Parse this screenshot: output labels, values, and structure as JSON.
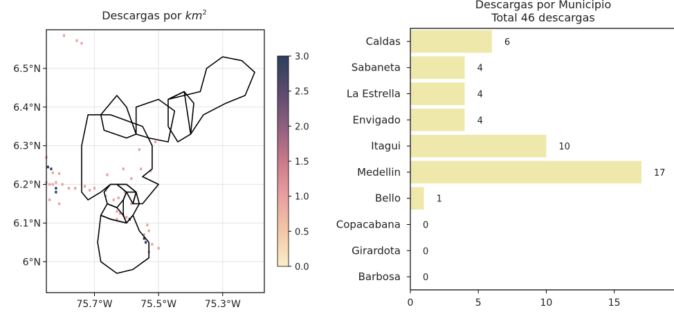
{
  "chart_data": [
    {
      "type": "heatmap",
      "title_text": "Descargas por ",
      "title_math": "km",
      "title_sup": "2",
      "xlim": [
        -75.85,
        -75.17
      ],
      "ylim": [
        5.92,
        6.6
      ],
      "x_ticks": [
        {
          "value": -75.7,
          "label": "75.7°W"
        },
        {
          "value": -75.5,
          "label": "75.5°W"
        },
        {
          "value": -75.3,
          "label": "75.3°W"
        }
      ],
      "y_ticks": [
        {
          "value": 6.5,
          "label": "6.5°N"
        },
        {
          "value": 6.4,
          "label": "6.4°N"
        },
        {
          "value": 6.3,
          "label": "6.3°N"
        },
        {
          "value": 6.2,
          "label": "6.2°N"
        },
        {
          "value": 6.1,
          "label": "6.1°N"
        },
        {
          "value": 6.0,
          "label": "6°N"
        }
      ],
      "grid": true,
      "colorbar": {
        "range": [
          0,
          3
        ],
        "ticks": [
          {
            "value": 3.0,
            "label": "3.0"
          },
          {
            "value": 2.5,
            "label": "2.5"
          },
          {
            "value": 2.0,
            "label": "2.0"
          },
          {
            "value": 1.5,
            "label": "1.5"
          },
          {
            "value": 1.0,
            "label": "1.0"
          },
          {
            "value": 0.5,
            "label": "0.5"
          },
          {
            "value": 0.0,
            "label": "0.0"
          }
        ],
        "colors": [
          "#fbeec8",
          "#f3c7a6",
          "#e8a0a0",
          "#c97a8a",
          "#8f5f7e",
          "#5a4a6e",
          "#2c3e5e"
        ]
      },
      "cells": [
        [
          -75.795,
          6.585,
          1
        ],
        [
          -75.755,
          6.572,
          1
        ],
        [
          -75.74,
          6.565,
          1
        ],
        [
          -75.85,
          6.27,
          1
        ],
        [
          -75.845,
          6.245,
          3
        ],
        [
          -75.835,
          6.24,
          3
        ],
        [
          -75.83,
          6.23,
          1
        ],
        [
          -75.81,
          6.228,
          1
        ],
        [
          -75.85,
          6.205,
          1
        ],
        [
          -75.84,
          6.2,
          1
        ],
        [
          -75.83,
          6.2,
          1
        ],
        [
          -75.82,
          6.205,
          1
        ],
        [
          -75.82,
          6.19,
          3
        ],
        [
          -75.82,
          6.18,
          3
        ],
        [
          -75.8,
          6.2,
          1
        ],
        [
          -75.78,
          6.19,
          1
        ],
        [
          -75.76,
          6.19,
          1
        ],
        [
          -75.73,
          6.195,
          1
        ],
        [
          -75.715,
          6.185,
          1
        ],
        [
          -75.84,
          6.16,
          1
        ],
        [
          -75.81,
          6.15,
          1
        ],
        [
          -75.66,
          6.225,
          1
        ],
        [
          -75.61,
          6.24,
          1
        ],
        [
          -75.585,
          6.215,
          1
        ],
        [
          -75.555,
          6.24,
          1
        ],
        [
          -75.525,
          6.235,
          1
        ],
        [
          -75.56,
          6.29,
          1
        ],
        [
          -75.51,
          6.31,
          1
        ],
        [
          -75.7,
          6.19,
          1
        ],
        [
          -75.665,
          6.185,
          1
        ],
        [
          -75.665,
          6.17,
          1
        ],
        [
          -75.625,
          6.165,
          1
        ],
        [
          -75.605,
          6.18,
          1
        ],
        [
          -75.64,
          6.16,
          1
        ],
        [
          -75.63,
          6.13,
          1
        ],
        [
          -75.62,
          6.125,
          1
        ],
        [
          -75.61,
          6.12,
          1
        ],
        [
          -75.6,
          6.115,
          1
        ],
        [
          -75.63,
          6.11,
          1
        ],
        [
          -75.59,
          6.11,
          3
        ],
        [
          -75.585,
          6.15,
          1
        ],
        [
          -75.535,
          6.095,
          1
        ],
        [
          -75.53,
          6.08,
          1
        ],
        [
          -75.545,
          6.07,
          1
        ],
        [
          -75.545,
          6.06,
          3
        ],
        [
          -75.54,
          6.05,
          3
        ],
        [
          -75.52,
          6.045,
          1
        ],
        [
          -75.5,
          6.035,
          1
        ],
        [
          -75.53,
          6.025,
          1
        ]
      ],
      "regions": [
        [
          [
            -75.67,
            6.18
          ],
          [
            -75.65,
            6.2
          ],
          [
            -75.63,
            6.2
          ],
          [
            -75.6,
            6.18
          ],
          [
            -75.61,
            6.16
          ],
          [
            -75.63,
            6.14
          ],
          [
            -75.66,
            6.15
          ]
        ],
        [
          [
            -75.63,
            6.2
          ],
          [
            -75.6,
            6.2
          ],
          [
            -75.57,
            6.18
          ],
          [
            -75.58,
            6.15
          ],
          [
            -75.6,
            6.18
          ]
        ],
        [
          [
            -75.66,
            6.15
          ],
          [
            -75.63,
            6.14
          ],
          [
            -75.61,
            6.12
          ],
          [
            -75.6,
            6.1
          ],
          [
            -75.65,
            6.11
          ],
          [
            -75.68,
            6.12
          ]
        ],
        [
          [
            -75.6,
            6.18
          ],
          [
            -75.57,
            6.18
          ],
          [
            -75.56,
            6.15
          ],
          [
            -75.58,
            6.12
          ],
          [
            -75.6,
            6.1
          ],
          [
            -75.61,
            6.12
          ],
          [
            -75.61,
            6.16
          ]
        ],
        [
          [
            -75.72,
            6.38
          ],
          [
            -75.65,
            6.38
          ],
          [
            -75.55,
            6.35
          ],
          [
            -75.52,
            6.3
          ],
          [
            -75.52,
            6.24
          ],
          [
            -75.55,
            6.22
          ],
          [
            -75.5,
            6.2
          ],
          [
            -75.55,
            6.15
          ],
          [
            -75.58,
            6.15
          ],
          [
            -75.57,
            6.18
          ],
          [
            -75.6,
            6.2
          ],
          [
            -75.65,
            6.2
          ],
          [
            -75.68,
            6.18
          ],
          [
            -75.72,
            6.16
          ],
          [
            -75.74,
            6.18
          ],
          [
            -75.74,
            6.3
          ]
        ],
        [
          [
            -75.68,
            6.12
          ],
          [
            -75.65,
            6.11
          ],
          [
            -75.6,
            6.1
          ],
          [
            -75.58,
            6.12
          ],
          [
            -75.56,
            6.08
          ],
          [
            -75.53,
            6.05
          ],
          [
            -75.53,
            6.01
          ],
          [
            -75.58,
            5.98
          ],
          [
            -75.63,
            5.97
          ],
          [
            -75.68,
            6.0
          ],
          [
            -75.69,
            6.05
          ]
        ],
        [
          [
            -75.68,
            6.38
          ],
          [
            -75.63,
            6.43
          ],
          [
            -75.6,
            6.4
          ],
          [
            -75.57,
            6.33
          ],
          [
            -75.6,
            6.32
          ],
          [
            -75.67,
            6.34
          ]
        ],
        [
          [
            -75.57,
            6.4
          ],
          [
            -75.5,
            6.42
          ],
          [
            -75.45,
            6.39
          ],
          [
            -75.47,
            6.31
          ],
          [
            -75.53,
            6.32
          ],
          [
            -75.57,
            6.33
          ]
        ],
        [
          [
            -75.47,
            6.42
          ],
          [
            -75.42,
            6.44
          ],
          [
            -75.39,
            6.41
          ],
          [
            -75.4,
            6.33
          ],
          [
            -75.44,
            6.31
          ],
          [
            -75.47,
            6.35
          ]
        ],
        [
          [
            -75.47,
            6.42
          ],
          [
            -75.37,
            6.44
          ],
          [
            -75.35,
            6.5
          ],
          [
            -75.3,
            6.53
          ],
          [
            -75.24,
            6.52
          ],
          [
            -75.2,
            6.49
          ],
          [
            -75.23,
            6.43
          ],
          [
            -75.29,
            6.41
          ],
          [
            -75.36,
            6.38
          ],
          [
            -75.4,
            6.33
          ],
          [
            -75.42,
            6.44
          ]
        ]
      ]
    },
    {
      "type": "bar",
      "orientation": "horizontal",
      "title": [
        "Descargas por Municipio",
        "Total 46 descargas"
      ],
      "categories": [
        "Caldas",
        "Sabaneta",
        "La Estrella",
        "Envigado",
        "Itagui",
        "Medellin",
        "Bello",
        "Copacabana",
        "Girardota",
        "Barbosa"
      ],
      "values": [
        6,
        4,
        4,
        4,
        10,
        17,
        1,
        0,
        0,
        0
      ],
      "xlim": [
        0,
        19.5
      ],
      "x_ticks": [
        0,
        5,
        10,
        15
      ],
      "color": "#eee8aa"
    }
  ]
}
